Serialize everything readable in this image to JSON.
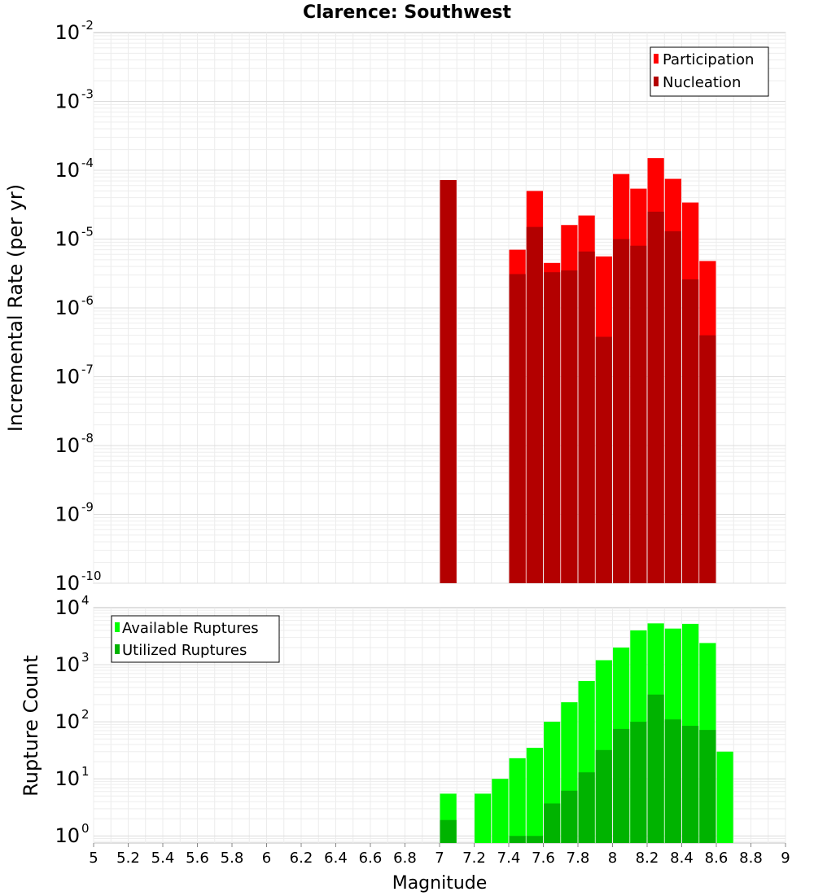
{
  "title": "Clarence: Southwest",
  "chart_data": [
    {
      "type": "bar",
      "ylabel": "Incremental Rate (per yr)",
      "yscale": "log",
      "ylim": [
        1e-10,
        0.01
      ],
      "yticks": [
        {
          "base": "10",
          "exp": "-10"
        },
        {
          "base": "10",
          "exp": "-9"
        },
        {
          "base": "10",
          "exp": "-8"
        },
        {
          "base": "10",
          "exp": "-7"
        },
        {
          "base": "10",
          "exp": "-6"
        },
        {
          "base": "10",
          "exp": "-5"
        },
        {
          "base": "10",
          "exp": "-4"
        },
        {
          "base": "10",
          "exp": "-3"
        },
        {
          "base": "10",
          "exp": "-2"
        }
      ],
      "legend_position": "top-right",
      "x": [
        7.05,
        7.45,
        7.55,
        7.65,
        7.75,
        7.85,
        7.95,
        8.05,
        8.15,
        8.25,
        8.35,
        8.45,
        8.55
      ],
      "series": [
        {
          "name": "Participation",
          "color": "#ff0000",
          "values": [
            7.2e-05,
            7e-06,
            5e-05,
            4.5e-06,
            1.6e-05,
            2.2e-05,
            5.6e-06,
            8.8e-05,
            5.4e-05,
            0.00015,
            7.5e-05,
            3.4e-05,
            4.8e-06
          ]
        },
        {
          "name": "Nucleation",
          "color": "#b30000",
          "values": [
            7.2e-05,
            3.1e-06,
            1.5e-05,
            3.3e-06,
            3.5e-06,
            6.6e-06,
            3.8e-07,
            1e-05,
            8e-06,
            2.5e-05,
            1.3e-05,
            2.6e-06,
            4e-07
          ]
        }
      ]
    },
    {
      "type": "bar",
      "ylabel": "Rupture Count",
      "xlabel": "Magnitude",
      "yscale": "log",
      "ylim": [
        0.75,
        10000
      ],
      "yticks": [
        {
          "base": "10",
          "exp": "0"
        },
        {
          "base": "10",
          "exp": "1"
        },
        {
          "base": "10",
          "exp": "2"
        },
        {
          "base": "10",
          "exp": "3"
        },
        {
          "base": "10",
          "exp": "4"
        }
      ],
      "xlim": [
        5,
        9
      ],
      "xticks": [
        "5",
        "5.2",
        "5.4",
        "5.6",
        "5.8",
        "6",
        "6.2",
        "6.4",
        "6.6",
        "6.8",
        "7",
        "7.2",
        "7.4",
        "7.6",
        "7.8",
        "8",
        "8.2",
        "8.4",
        "8.6",
        "8.8",
        "9"
      ],
      "legend_position": "top-left",
      "x": [
        7.05,
        7.25,
        7.35,
        7.45,
        7.55,
        7.65,
        7.75,
        7.85,
        7.95,
        8.05,
        8.15,
        8.25,
        8.35,
        8.45,
        8.55,
        8.65
      ],
      "series": [
        {
          "name": "Available Ruptures",
          "color": "#00ff00",
          "values": [
            5.5,
            5.5,
            10,
            23,
            35,
            100,
            220,
            520,
            1200,
            2000,
            4000,
            5300,
            4300,
            5200,
            2400,
            30
          ]
        },
        {
          "name": "Utilized Ruptures",
          "color": "#00b300",
          "values": [
            1.9,
            0,
            0,
            1.0,
            1.0,
            3.7,
            6.2,
            13,
            32,
            75,
            100,
            300,
            110,
            85,
            72,
            0
          ]
        }
      ]
    }
  ]
}
